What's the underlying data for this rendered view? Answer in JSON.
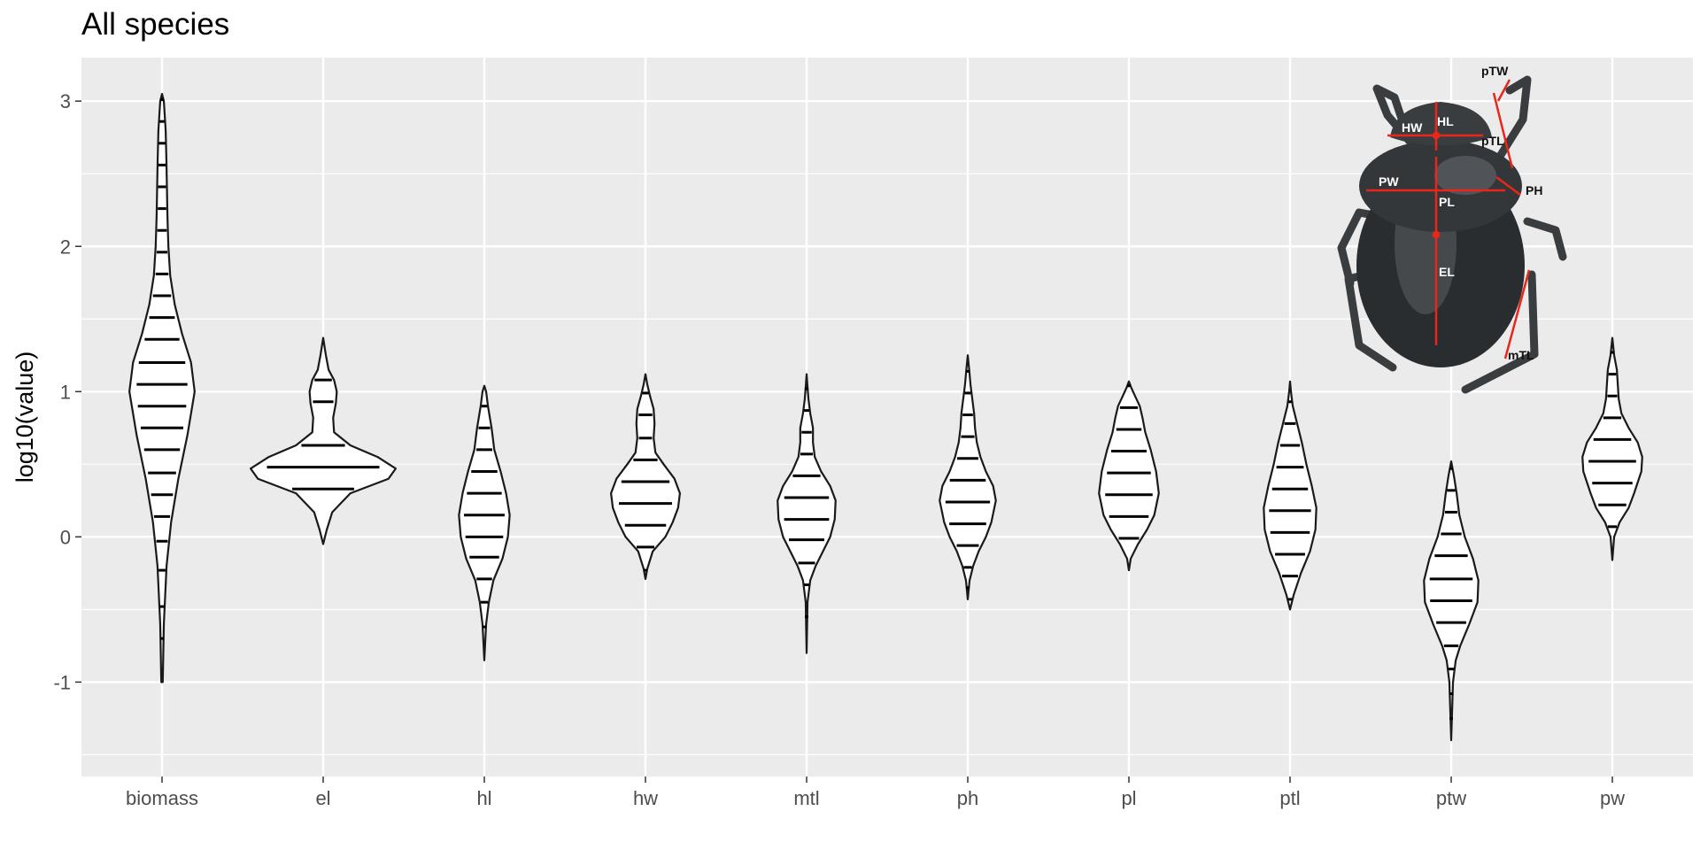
{
  "chart_data": {
    "type": "violin",
    "title": "All species",
    "xlabel": "",
    "ylabel": "log10(value)",
    "ylim": [
      -1.65,
      3.3
    ],
    "yticks": [
      -1,
      0,
      1,
      2,
      3
    ],
    "grid": true,
    "legend": "none",
    "categories": [
      "biomass",
      "el",
      "hl",
      "hw",
      "mtl",
      "ph",
      "pl",
      "ptl",
      "ptw",
      "pw"
    ],
    "series": [
      {
        "category": "biomass",
        "range": [
          -1.0,
          3.05
        ],
        "profile": [
          [
            -1.0,
            0.004
          ],
          [
            -0.6,
            0.01
          ],
          [
            -0.2,
            0.025
          ],
          [
            0.1,
            0.05
          ],
          [
            0.4,
            0.09
          ],
          [
            0.7,
            0.14
          ],
          [
            1.0,
            0.18
          ],
          [
            1.2,
            0.16
          ],
          [
            1.4,
            0.11
          ],
          [
            1.6,
            0.07
          ],
          [
            1.8,
            0.045
          ],
          [
            2.0,
            0.035
          ],
          [
            2.2,
            0.03
          ],
          [
            2.4,
            0.027
          ],
          [
            2.6,
            0.024
          ],
          [
            2.8,
            0.02
          ],
          [
            3.0,
            0.01
          ],
          [
            3.05,
            0.0
          ]
        ],
        "lines": [
          -0.7,
          -0.48,
          -0.23,
          -0.03,
          0.14,
          0.29,
          0.44,
          0.6,
          0.75,
          0.9,
          1.05,
          1.2,
          1.36,
          1.51,
          1.66,
          1.81,
          1.96,
          2.11,
          2.26,
          2.41,
          2.56,
          2.71,
          2.86,
          3.01
        ]
      },
      {
        "category": "el",
        "range": [
          -0.05,
          1.37
        ],
        "profile": [
          [
            -0.05,
            0.0
          ],
          [
            0.05,
            0.02
          ],
          [
            0.17,
            0.05
          ],
          [
            0.3,
            0.15
          ],
          [
            0.4,
            0.36
          ],
          [
            0.47,
            0.4
          ],
          [
            0.55,
            0.3
          ],
          [
            0.63,
            0.15
          ],
          [
            0.72,
            0.06
          ],
          [
            0.82,
            0.055
          ],
          [
            0.92,
            0.07
          ],
          [
            1.0,
            0.075
          ],
          [
            1.08,
            0.06
          ],
          [
            1.15,
            0.03
          ],
          [
            1.25,
            0.015
          ],
          [
            1.37,
            0.0
          ]
        ],
        "lines": [
          0.33,
          0.48,
          0.63,
          0.93,
          1.08
        ]
      },
      {
        "category": "hl",
        "range": [
          -0.85,
          1.04
        ],
        "profile": [
          [
            -0.85,
            0.0
          ],
          [
            -0.6,
            0.01
          ],
          [
            -0.45,
            0.025
          ],
          [
            -0.3,
            0.05
          ],
          [
            -0.15,
            0.1
          ],
          [
            0.0,
            0.13
          ],
          [
            0.15,
            0.14
          ],
          [
            0.3,
            0.12
          ],
          [
            0.45,
            0.09
          ],
          [
            0.6,
            0.055
          ],
          [
            0.75,
            0.04
          ],
          [
            0.9,
            0.02
          ],
          [
            1.0,
            0.01
          ],
          [
            1.04,
            0.0
          ]
        ],
        "lines": [
          -0.62,
          -0.45,
          -0.29,
          -0.14,
          0.0,
          0.15,
          0.3,
          0.45,
          0.6,
          0.75,
          0.9
        ]
      },
      {
        "category": "hw",
        "range": [
          -0.29,
          1.12
        ],
        "profile": [
          [
            -0.29,
            0.0
          ],
          [
            -0.22,
            0.01
          ],
          [
            -0.1,
            0.04
          ],
          [
            0.0,
            0.11
          ],
          [
            0.1,
            0.15
          ],
          [
            0.2,
            0.18
          ],
          [
            0.3,
            0.19
          ],
          [
            0.4,
            0.16
          ],
          [
            0.5,
            0.1
          ],
          [
            0.58,
            0.055
          ],
          [
            0.68,
            0.045
          ],
          [
            0.78,
            0.05
          ],
          [
            0.88,
            0.045
          ],
          [
            0.97,
            0.025
          ],
          [
            1.05,
            0.01
          ],
          [
            1.12,
            0.0
          ]
        ],
        "lines": [
          -0.23,
          -0.07,
          0.08,
          0.23,
          0.38,
          0.53,
          0.68,
          0.84,
          0.99
        ]
      },
      {
        "category": "mtl",
        "range": [
          -0.8,
          1.12
        ],
        "profile": [
          [
            -0.8,
            0.0
          ],
          [
            -0.45,
            0.005
          ],
          [
            -0.3,
            0.02
          ],
          [
            -0.2,
            0.05
          ],
          [
            -0.1,
            0.09
          ],
          [
            0.0,
            0.13
          ],
          [
            0.12,
            0.155
          ],
          [
            0.25,
            0.16
          ],
          [
            0.35,
            0.13
          ],
          [
            0.45,
            0.08
          ],
          [
            0.55,
            0.045
          ],
          [
            0.65,
            0.035
          ],
          [
            0.75,
            0.035
          ],
          [
            0.85,
            0.02
          ],
          [
            0.95,
            0.01
          ],
          [
            1.05,
            0.004
          ],
          [
            1.12,
            0.0
          ]
        ],
        "lines": [
          -0.55,
          -0.33,
          -0.18,
          -0.02,
          0.12,
          0.27,
          0.42,
          0.57,
          0.72,
          0.87,
          1.02
        ]
      },
      {
        "category": "ph",
        "range": [
          -0.43,
          1.25
        ],
        "profile": [
          [
            -0.43,
            0.0
          ],
          [
            -0.3,
            0.01
          ],
          [
            -0.2,
            0.03
          ],
          [
            -0.1,
            0.06
          ],
          [
            0.0,
            0.1
          ],
          [
            0.1,
            0.13
          ],
          [
            0.25,
            0.155
          ],
          [
            0.35,
            0.14
          ],
          [
            0.45,
            0.1
          ],
          [
            0.55,
            0.07
          ],
          [
            0.65,
            0.05
          ],
          [
            0.75,
            0.04
          ],
          [
            0.85,
            0.035
          ],
          [
            0.95,
            0.025
          ],
          [
            1.05,
            0.015
          ],
          [
            1.15,
            0.008
          ],
          [
            1.25,
            0.0
          ]
        ],
        "lines": [
          -0.35,
          -0.21,
          -0.06,
          0.09,
          0.24,
          0.39,
          0.54,
          0.69,
          0.84,
          0.99,
          1.14
        ]
      },
      {
        "category": "pl",
        "range": [
          -0.23,
          1.07
        ],
        "profile": [
          [
            -0.23,
            0.0
          ],
          [
            -0.15,
            0.01
          ],
          [
            -0.05,
            0.05
          ],
          [
            0.05,
            0.1
          ],
          [
            0.15,
            0.14
          ],
          [
            0.3,
            0.165
          ],
          [
            0.45,
            0.15
          ],
          [
            0.6,
            0.12
          ],
          [
            0.72,
            0.09
          ],
          [
            0.82,
            0.075
          ],
          [
            0.9,
            0.06
          ],
          [
            0.98,
            0.03
          ],
          [
            1.03,
            0.012
          ],
          [
            1.07,
            0.0
          ]
        ],
        "lines": [
          -0.01,
          0.14,
          0.29,
          0.44,
          0.59,
          0.74,
          0.89,
          1.04
        ]
      },
      {
        "category": "ptl",
        "range": [
          -0.5,
          1.07
        ],
        "profile": [
          [
            -0.5,
            0.0
          ],
          [
            -0.4,
            0.02
          ],
          [
            -0.25,
            0.06
          ],
          [
            -0.1,
            0.11
          ],
          [
            0.05,
            0.14
          ],
          [
            0.2,
            0.145
          ],
          [
            0.35,
            0.12
          ],
          [
            0.5,
            0.09
          ],
          [
            0.65,
            0.065
          ],
          [
            0.8,
            0.035
          ],
          [
            0.9,
            0.015
          ],
          [
            1.0,
            0.005
          ],
          [
            1.07,
            0.0
          ]
        ],
        "lines": [
          -0.43,
          -0.27,
          -0.12,
          0.03,
          0.18,
          0.33,
          0.48,
          0.63,
          0.78,
          0.93
        ]
      },
      {
        "category": "ptw",
        "range": [
          -1.4,
          0.52
        ],
        "profile": [
          [
            -1.4,
            0.0
          ],
          [
            -1.0,
            0.01
          ],
          [
            -0.85,
            0.025
          ],
          [
            -0.75,
            0.05
          ],
          [
            -0.6,
            0.1
          ],
          [
            -0.45,
            0.145
          ],
          [
            -0.3,
            0.15
          ],
          [
            -0.15,
            0.12
          ],
          [
            0.0,
            0.075
          ],
          [
            0.15,
            0.045
          ],
          [
            0.3,
            0.03
          ],
          [
            0.42,
            0.015
          ],
          [
            0.52,
            0.0
          ]
        ],
        "lines": [
          -1.25,
          -1.08,
          -0.91,
          -0.75,
          -0.59,
          -0.44,
          -0.29,
          -0.13,
          0.02,
          0.17,
          0.32,
          0.47
        ]
      },
      {
        "category": "pw",
        "range": [
          -0.16,
          1.37
        ],
        "profile": [
          [
            -0.16,
            0.0
          ],
          [
            0.0,
            0.01
          ],
          [
            0.1,
            0.04
          ],
          [
            0.2,
            0.09
          ],
          [
            0.3,
            0.12
          ],
          [
            0.45,
            0.16
          ],
          [
            0.55,
            0.165
          ],
          [
            0.65,
            0.14
          ],
          [
            0.75,
            0.09
          ],
          [
            0.85,
            0.05
          ],
          [
            0.95,
            0.035
          ],
          [
            1.05,
            0.03
          ],
          [
            1.15,
            0.025
          ],
          [
            1.25,
            0.01
          ],
          [
            1.37,
            0.0
          ]
        ],
        "lines": [
          0.07,
          0.22,
          0.37,
          0.52,
          0.67,
          0.82,
          0.97,
          1.12,
          1.27
        ]
      }
    ]
  },
  "inset": {
    "labels": [
      "pTW",
      "HL",
      "HW",
      "pTL",
      "PW",
      "PH",
      "PL",
      "EL",
      "mTL"
    ]
  },
  "colors": {
    "panel": "#ebebeb",
    "grid_major": "#ffffff",
    "outline": "#1a1a1a",
    "violin_fill": "#ffffff",
    "arrow": "#e8261a",
    "beetle_dark": "#2a2d30",
    "beetle_mid": "#5d6165"
  }
}
